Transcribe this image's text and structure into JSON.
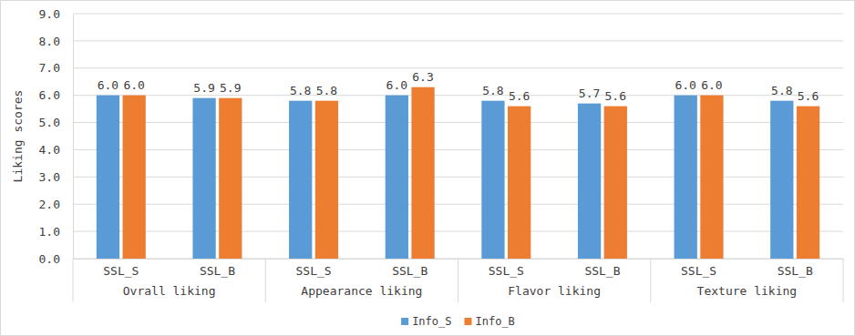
{
  "chart_data": {
    "type": "bar",
    "y_label": "Liking scores",
    "categories": [
      "SSL_S",
      "SSL_B",
      "SSL_S",
      "SSL_B",
      "SSL_S",
      "SSL_B",
      "SSL_S",
      "SSL_B"
    ],
    "category_groups": [
      "Ovrall liking",
      "Appearance liking",
      "Flavor liking",
      "Texture liking"
    ],
    "series": [
      {
        "name": "Info_S",
        "color": "#5b9bd5",
        "values": [
          6.0,
          5.9,
          5.8,
          6.0,
          5.8,
          5.7,
          6.0,
          5.8
        ],
        "value_labels": [
          "6.0",
          "5.9",
          "5.8",
          "6.0",
          "5.8",
          "5.7",
          "6.0",
          "5.8"
        ]
      },
      {
        "name": "Info_B",
        "color": "#ed7d31",
        "values": [
          6.0,
          5.9,
          5.8,
          6.3,
          5.6,
          5.6,
          6.0,
          5.6
        ],
        "value_labels": [
          "6.0",
          "5.9",
          "5.8",
          "6.3",
          "5.6",
          "5.6",
          "6.0",
          "5.6"
        ]
      }
    ],
    "ylim": [
      0,
      9
    ],
    "yticks": [
      {
        "value": 0,
        "label": "0.0"
      },
      {
        "value": 1,
        "label": "1.0"
      },
      {
        "value": 2,
        "label": "2.0"
      },
      {
        "value": 3,
        "label": "3.0"
      },
      {
        "value": 4,
        "label": "4.0"
      },
      {
        "value": 5,
        "label": "5.0"
      },
      {
        "value": 6,
        "label": "6.0"
      },
      {
        "value": 7,
        "label": "7.0"
      },
      {
        "value": 8,
        "label": "8.0"
      },
      {
        "value": 9,
        "label": "9.0"
      }
    ],
    "grid": true,
    "data_labels": true,
    "legend": "bottom"
  }
}
